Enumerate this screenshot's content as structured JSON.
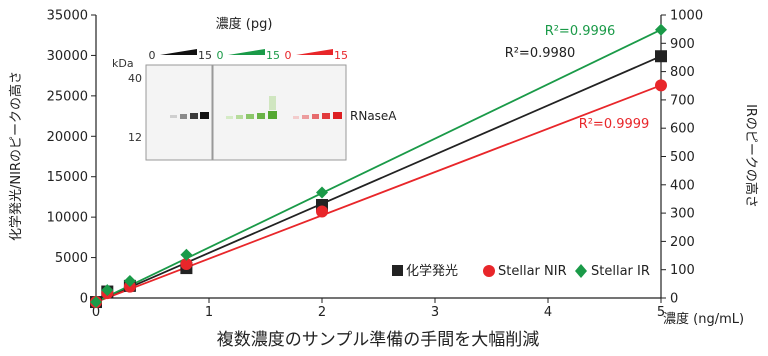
{
  "chart_data": {
    "type": "line",
    "x": [
      0,
      0.1,
      0.3,
      0.8,
      2,
      5
    ],
    "xlim": [
      0,
      5
    ],
    "xticks": [
      "0",
      "1",
      "2",
      "3",
      "4",
      "5"
    ],
    "ylim_left": [
      0,
      35000
    ],
    "yticks_left": [
      "0",
      "5000",
      "10000",
      "15000",
      "20000",
      "25000",
      "30000",
      "35000"
    ],
    "ylim_right": [
      0,
      1000
    ],
    "yticks_right": [
      "0",
      "100",
      "200",
      "300",
      "400",
      "500",
      "600",
      "700",
      "800",
      "900",
      "1000"
    ],
    "ylabel_left": "化学発光/NIRのピークの高さ",
    "ylabel_right": "IRのピークの高さ",
    "xlabel_unit": "濃度 (ng/mL)",
    "xlabel": "複数濃度のサンプル準備の手間を大幅削減",
    "series": [
      {
        "name": "化学発光",
        "color": "#222222",
        "marker": "square",
        "axis": "left",
        "values": [
          -500,
          800,
          1500,
          3700,
          11500,
          29900
        ],
        "fit": [
          -500,
          29900
        ],
        "r2": "R²=0.9980"
      },
      {
        "name": "Stellar NIR",
        "color": "#e8262a",
        "marker": "circle",
        "axis": "left",
        "values": [
          -500,
          600,
          1400,
          4200,
          10700,
          26300
        ],
        "fit": [
          -500,
          26300
        ],
        "r2": "R²=0.9999"
      },
      {
        "name": "Stellar IR",
        "color": "#1a9a48",
        "marker": "diamond",
        "axis": "right",
        "values": [
          -14,
          28,
          60,
          153,
          373,
          948
        ],
        "fit": [
          -14,
          948
        ],
        "r2": "R²=0.9996"
      }
    ],
    "legend_position": "bottom-right",
    "inset": {
      "title": "濃度 (pg)",
      "kda_label": "kDa",
      "markers": [
        "40",
        "12"
      ],
      "band_label": "RNaseA",
      "ramps": [
        {
          "start": "0",
          "end": "15",
          "color": "#111111"
        },
        {
          "start": "0",
          "end": "15",
          "color": "#1a9a48"
        },
        {
          "start": "0",
          "end": "15",
          "color": "#e8262a"
        }
      ]
    }
  }
}
